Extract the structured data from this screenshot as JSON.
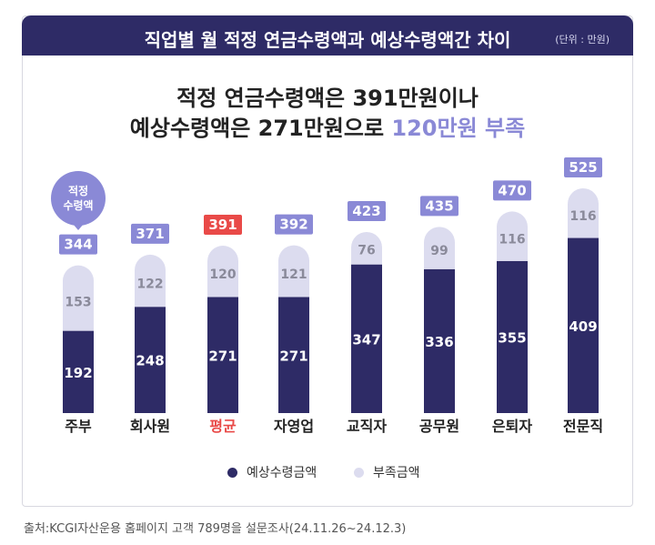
{
  "header": {
    "title": "직업별 월 적정 연금수령액과 예상수령액간 차이",
    "unit": "(단위 : 만원)"
  },
  "headline": {
    "line1": "적정 연금수령액은 391만원이나",
    "line2_prefix": "예상수령액은 271만원으로 ",
    "line2_accent": "120만원 부족"
  },
  "callout": {
    "line1": "적정",
    "line2": "수령액"
  },
  "legend": {
    "expected": "예상수령금액",
    "shortfall": "부족금액"
  },
  "colors": {
    "header": "#2e2b66",
    "expected": "#2e2b66",
    "shortfall": "#dcdcef",
    "total_label_bg": "#8a89d6",
    "highlight": "#e94a48",
    "accent": "#8a89d6"
  },
  "chart_data": {
    "type": "bar",
    "stacked": true,
    "categories": [
      "주부",
      "회사원",
      "평균",
      "자영업",
      "교직자",
      "공무원",
      "은퇴자",
      "전문직"
    ],
    "highlight_category": "평균",
    "series": [
      {
        "name": "예상수령금액",
        "values": [
          192,
          248,
          271,
          271,
          347,
          336,
          355,
          409
        ]
      },
      {
        "name": "부족금액",
        "values": [
          153,
          122,
          120,
          121,
          76,
          99,
          116,
          116
        ]
      }
    ],
    "totals": [
      344,
      371,
      391,
      392,
      423,
      435,
      470,
      525
    ],
    "ylim": [
      0,
      525
    ],
    "grid": false,
    "legend_position": "bottom"
  },
  "source": "출처:KCGI자산운용 홈페이지 고객 789명을 설문조사(24.11.26~24.12.3)"
}
